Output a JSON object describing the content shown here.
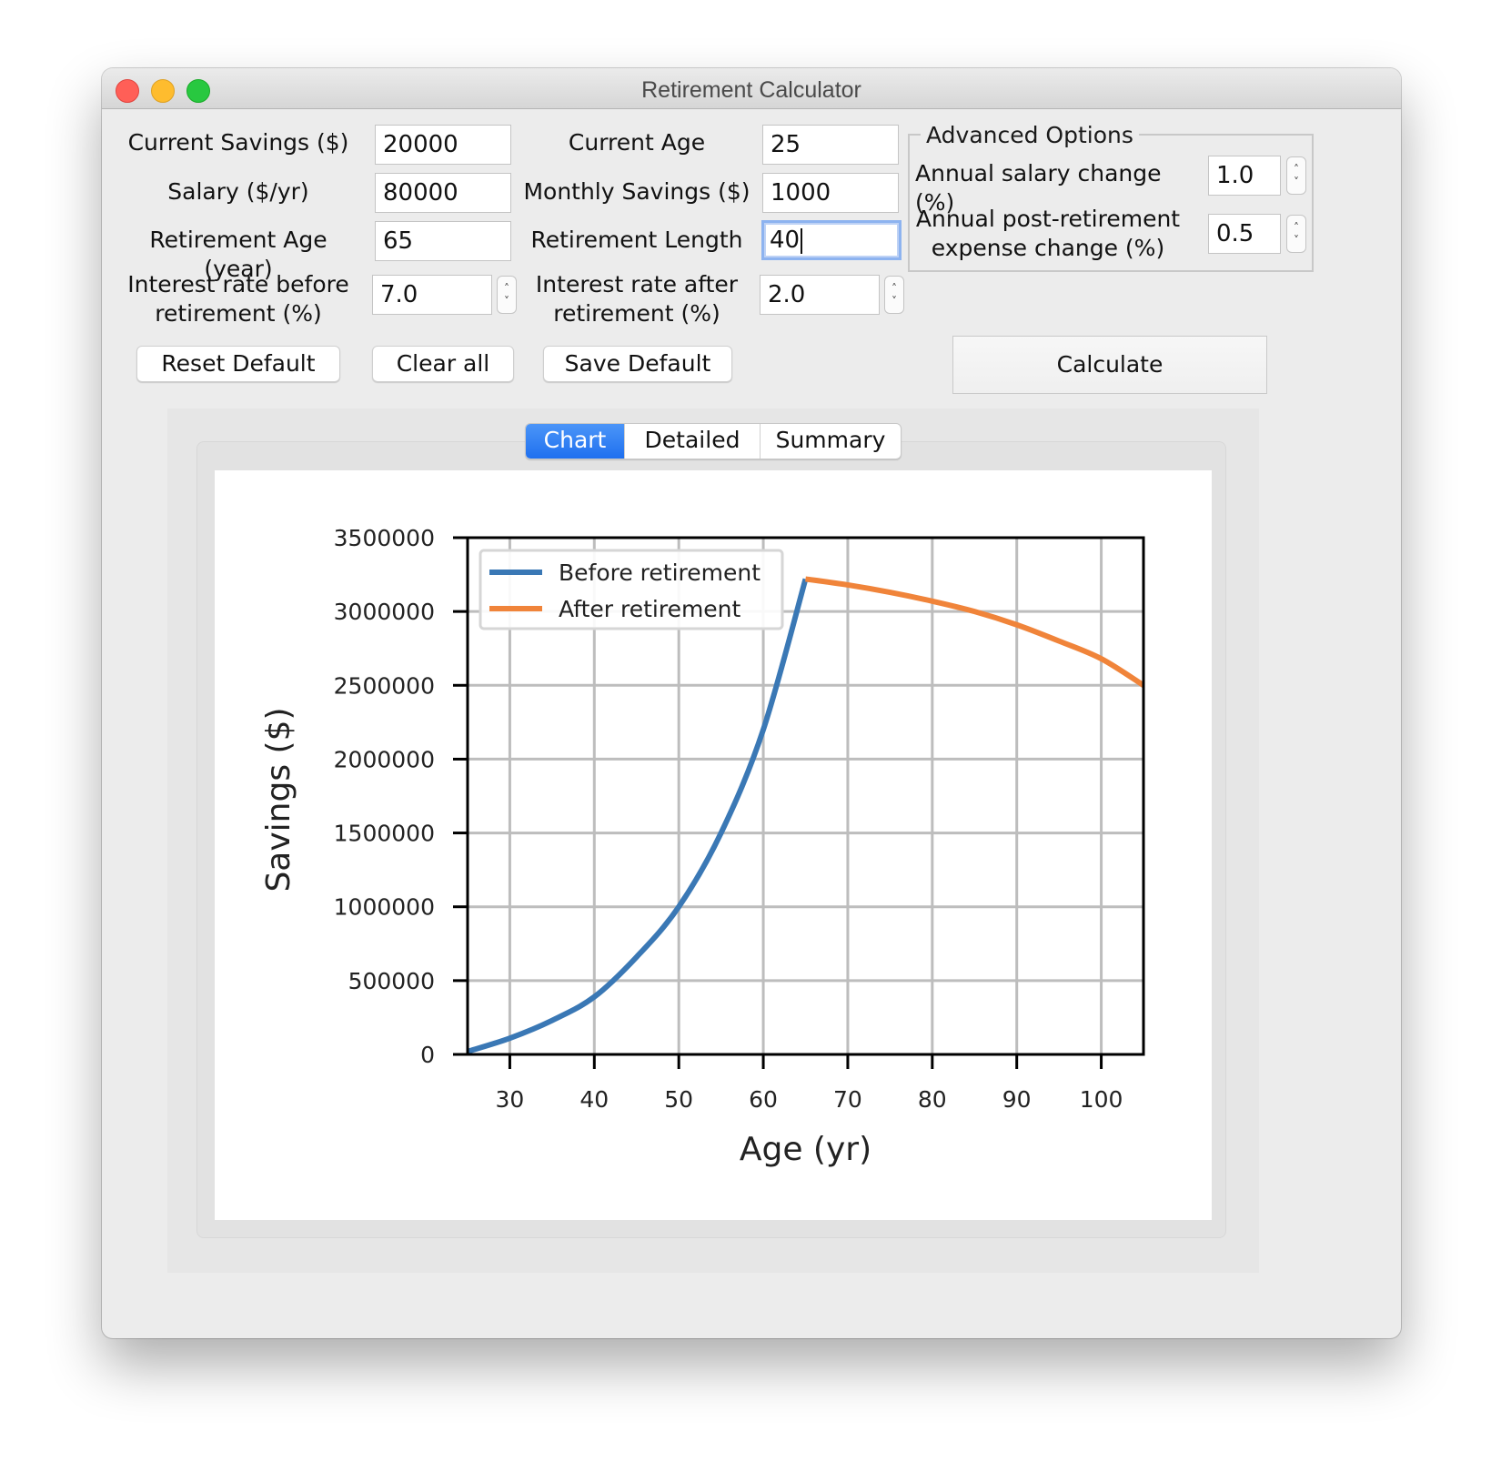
{
  "window": {
    "title": "Retirement Calculator"
  },
  "form": {
    "current_savings": {
      "label": "Current Savings ($)",
      "value": "20000"
    },
    "salary": {
      "label": "Salary ($/yr)",
      "value": "80000"
    },
    "retirement_age": {
      "label": "Retirement Age (year)",
      "value": "65"
    },
    "interest_before": {
      "label_line1": "Interest rate before",
      "label_line2": "retirement (%)",
      "value": "7.0"
    },
    "current_age": {
      "label": "Current Age",
      "value": "25"
    },
    "monthly_savings": {
      "label": "Monthly Savings ($)",
      "value": "1000"
    },
    "retirement_length": {
      "label": "Retirement Length",
      "value": "40"
    },
    "interest_after": {
      "label_line1": "Interest rate after",
      "label_line2": "retirement (%)",
      "value": "2.0"
    }
  },
  "advanced": {
    "title": "Advanced Options",
    "salary_change": {
      "label": "Annual salary change (%)",
      "value": "1.0"
    },
    "expense_change": {
      "label_line1": "Annual post-retirement",
      "label_line2": "expense change (%)",
      "value": "0.5"
    }
  },
  "buttons": {
    "reset_default": "Reset Default",
    "clear_all": "Clear all",
    "save_default": "Save Default",
    "calculate": "Calculate"
  },
  "tabs": [
    {
      "label": "Chart",
      "active": true
    },
    {
      "label": "Detailed",
      "active": false
    },
    {
      "label": "Summary",
      "active": false
    }
  ],
  "colors": {
    "before": "#3a78b5",
    "after": "#f0843a",
    "tab_active": "#2f7ef5"
  },
  "chart_data": {
    "type": "line",
    "xlabel": "Age (yr)",
    "ylabel": "Savings ($)",
    "xlim": [
      25,
      105
    ],
    "ylim": [
      0,
      3500000
    ],
    "xticks": [
      30,
      40,
      50,
      60,
      70,
      80,
      90,
      100
    ],
    "yticks": [
      0,
      500000,
      1000000,
      1500000,
      2000000,
      2500000,
      3000000,
      3500000
    ],
    "grid": true,
    "legend": "upper-left",
    "series": [
      {
        "name": "Before retirement",
        "color": "#3a78b5",
        "x": [
          25,
          30,
          35,
          40,
          45,
          50,
          55,
          60,
          65
        ],
        "y": [
          20000,
          110000,
          230000,
          390000,
          660000,
          1000000,
          1500000,
          2200000,
          3220000
        ]
      },
      {
        "name": "After retirement",
        "color": "#f0843a",
        "x": [
          65,
          70,
          75,
          80,
          85,
          90,
          95,
          100,
          105
        ],
        "y": [
          3220000,
          3180000,
          3130000,
          3070000,
          3000000,
          2910000,
          2800000,
          2680000,
          2500000
        ]
      }
    ]
  }
}
